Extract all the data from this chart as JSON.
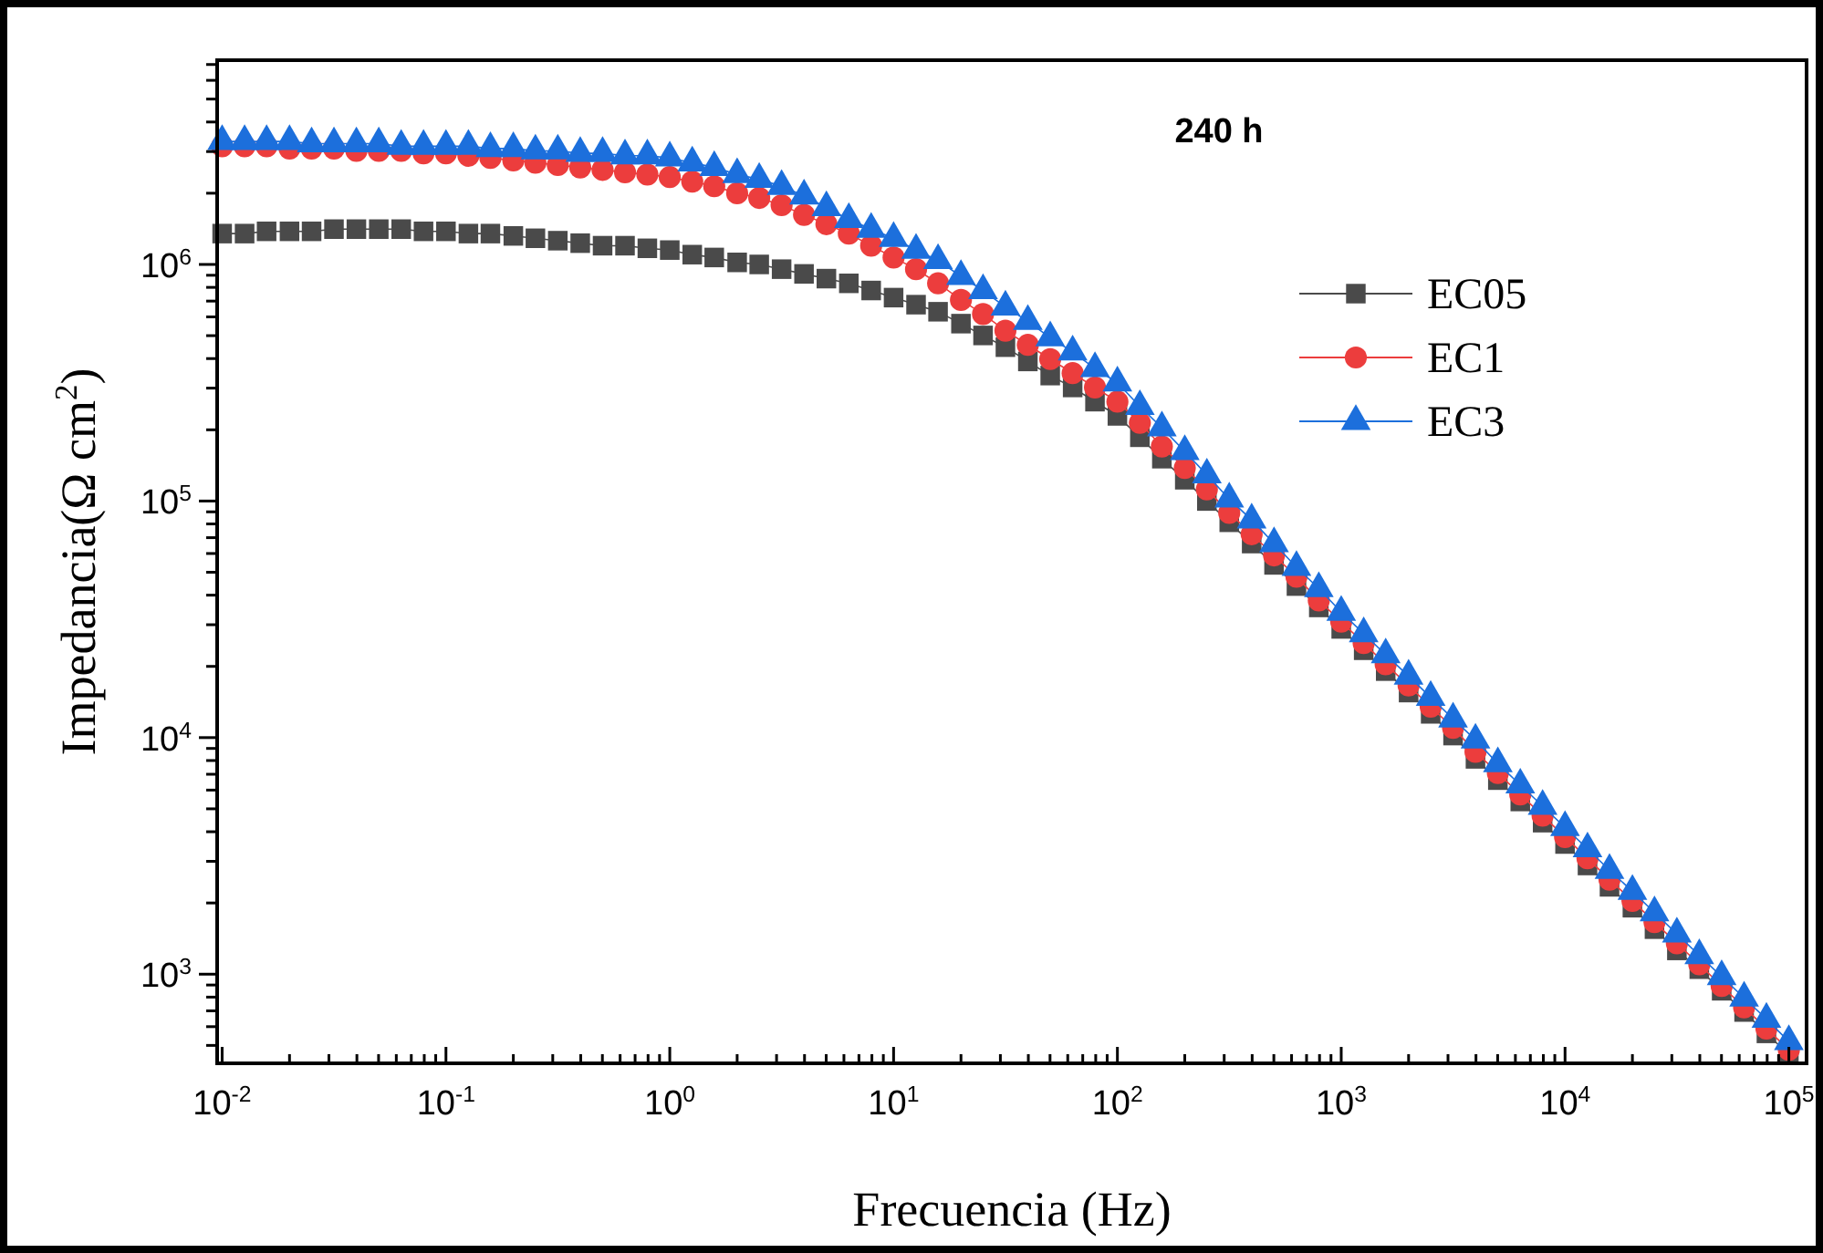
{
  "chart_data": {
    "type": "line",
    "title": "240 h",
    "xlabel": "Frecuencia (Hz)",
    "ylabel": "Impedancia(Ω cm$^{2}$)",
    "log": "xy",
    "line_style": "solid",
    "legend": "right",
    "grid": false,
    "xlim": [
      0.0095,
      120000
    ],
    "ylim": [
      420,
      7300000
    ],
    "xticks": [
      {
        "value": 0.01,
        "label": "10$^{-2}$"
      },
      {
        "value": 0.02,
        "label": null
      },
      {
        "value": 0.03,
        "label": null
      },
      {
        "value": 0.04,
        "label": null
      },
      {
        "value": 0.05,
        "label": null
      },
      {
        "value": 0.06,
        "label": null
      },
      {
        "value": 0.07,
        "label": null
      },
      {
        "value": 0.08,
        "label": null
      },
      {
        "value": 0.09,
        "label": null
      },
      {
        "value": 0.1,
        "label": "10$^{-1}$"
      },
      {
        "value": 0.2,
        "label": null
      },
      {
        "value": 0.3,
        "label": null
      },
      {
        "value": 0.4,
        "label": null
      },
      {
        "value": 0.5,
        "label": null
      },
      {
        "value": 0.6,
        "label": null
      },
      {
        "value": 0.7,
        "label": null
      },
      {
        "value": 0.8,
        "label": null
      },
      {
        "value": 0.9,
        "label": null
      },
      {
        "value": 1,
        "label": "10$^{0}$"
      },
      {
        "value": 2,
        "label": null
      },
      {
        "value": 3,
        "label": null
      },
      {
        "value": 4,
        "label": null
      },
      {
        "value": 5,
        "label": null
      },
      {
        "value": 6,
        "label": null
      },
      {
        "value": 7,
        "label": null
      },
      {
        "value": 8,
        "label": null
      },
      {
        "value": 9,
        "label": null
      },
      {
        "value": 10,
        "label": "10$^{1}$"
      },
      {
        "value": 20,
        "label": null
      },
      {
        "value": 30,
        "label": null
      },
      {
        "value": 40,
        "label": null
      },
      {
        "value": 50,
        "label": null
      },
      {
        "value": 60,
        "label": null
      },
      {
        "value": 70,
        "label": null
      },
      {
        "value": 80,
        "label": null
      },
      {
        "value": 90,
        "label": null
      },
      {
        "value": 100,
        "label": "10$^{2}$"
      },
      {
        "value": 200,
        "label": null
      },
      {
        "value": 300,
        "label": null
      },
      {
        "value": 400,
        "label": null
      },
      {
        "value": 500,
        "label": null
      },
      {
        "value": 600,
        "label": null
      },
      {
        "value": 700,
        "label": null
      },
      {
        "value": 800,
        "label": null
      },
      {
        "value": 900,
        "label": null
      },
      {
        "value": 1000,
        "label": "10$^{3}$"
      },
      {
        "value": 2000,
        "label": null
      },
      {
        "value": 3000,
        "label": null
      },
      {
        "value": 4000,
        "label": null
      },
      {
        "value": 5000,
        "label": null
      },
      {
        "value": 6000,
        "label": null
      },
      {
        "value": 7000,
        "label": null
      },
      {
        "value": 8000,
        "label": null
      },
      {
        "value": 9000,
        "label": null
      },
      {
        "value": 10000,
        "label": "10$^{4}$"
      },
      {
        "value": 20000,
        "label": null
      },
      {
        "value": 30000,
        "label": null
      },
      {
        "value": 40000,
        "label": null
      },
      {
        "value": 50000,
        "label": null
      },
      {
        "value": 60000,
        "label": null
      },
      {
        "value": 70000,
        "label": null
      },
      {
        "value": 80000,
        "label": null
      },
      {
        "value": 90000,
        "label": null
      },
      {
        "value": 100000,
        "label": "10$^{5}$"
      }
    ],
    "yticks": [
      {
        "value": 500,
        "label": null
      },
      {
        "value": 600,
        "label": null
      },
      {
        "value": 700,
        "label": null
      },
      {
        "value": 800,
        "label": null
      },
      {
        "value": 900,
        "label": null
      },
      {
        "value": 1000,
        "label": "10$^{3}$"
      },
      {
        "value": 2000,
        "label": null
      },
      {
        "value": 3000,
        "label": null
      },
      {
        "value": 4000,
        "label": null
      },
      {
        "value": 5000,
        "label": null
      },
      {
        "value": 6000,
        "label": null
      },
      {
        "value": 7000,
        "label": null
      },
      {
        "value": 8000,
        "label": null
      },
      {
        "value": 9000,
        "label": null
      },
      {
        "value": 10000,
        "label": "10$^{4}$"
      },
      {
        "value": 20000,
        "label": null
      },
      {
        "value": 30000,
        "label": null
      },
      {
        "value": 40000,
        "label": null
      },
      {
        "value": 50000,
        "label": null
      },
      {
        "value": 60000,
        "label": null
      },
      {
        "value": 70000,
        "label": null
      },
      {
        "value": 80000,
        "label": null
      },
      {
        "value": 90000,
        "label": null
      },
      {
        "value": 100000,
        "label": "10$^{5}$"
      },
      {
        "value": 200000,
        "label": null
      },
      {
        "value": 300000,
        "label": null
      },
      {
        "value": 400000,
        "label": null
      },
      {
        "value": 500000,
        "label": null
      },
      {
        "value": 600000,
        "label": null
      },
      {
        "value": 700000,
        "label": null
      },
      {
        "value": 800000,
        "label": null
      },
      {
        "value": 900000,
        "label": null
      },
      {
        "value": 1000000,
        "label": "10$^{6}$"
      },
      {
        "value": 2000000,
        "label": null
      },
      {
        "value": 3000000,
        "label": null
      },
      {
        "value": 4000000,
        "label": null
      },
      {
        "value": 5000000,
        "label": null
      },
      {
        "value": 6000000,
        "label": null
      },
      {
        "value": 7000000,
        "label": null
      }
    ],
    "x": [
      0.01,
      0.0126,
      0.0158,
      0.02,
      0.0251,
      0.0316,
      0.0398,
      0.0501,
      0.0631,
      0.0794,
      0.1,
      0.126,
      0.158,
      0.2,
      0.251,
      0.316,
      0.398,
      0.501,
      0.631,
      0.794,
      1,
      1.26,
      1.58,
      2,
      2.51,
      3.16,
      3.98,
      5.01,
      6.31,
      7.94,
      10,
      12.6,
      15.8,
      20,
      25.1,
      31.6,
      39.8,
      50.1,
      63.1,
      79.4,
      100,
      126,
      158,
      200,
      251,
      316,
      398,
      501,
      631,
      794,
      1000,
      1260,
      1580,
      2000,
      2510,
      3160,
      3980,
      5010,
      6310,
      7940,
      10000,
      12600,
      15800,
      20000,
      25100,
      31600,
      39800,
      50100,
      63100,
      79400,
      100000
    ],
    "series": [
      {
        "name": "EC05",
        "color": "#4a4a4a",
        "marker": "square",
        "values": [
          1350000,
          1350000,
          1380000,
          1380000,
          1380000,
          1410000,
          1410000,
          1410000,
          1410000,
          1380000,
          1380000,
          1350000,
          1350000,
          1320000,
          1290000,
          1260000,
          1230000,
          1200000,
          1200000,
          1170000,
          1150000,
          1100000,
          1070000,
          1020000,
          1000000,
          955000,
          912000,
          871000,
          832000,
          776000,
          724000,
          676000,
          631000,
          562000,
          501000,
          447000,
          389000,
          339000,
          302000,
          263000,
          229000,
          186000,
          151000,
          123000,
          100000,
          81300,
          66100,
          53700,
          43700,
          35500,
          28800,
          23400,
          19100,
          15500,
          12600,
          10200,
          8130,
          6610,
          5370,
          4370,
          3550,
          2880,
          2340,
          1910,
          1550,
          1260,
          1050,
          851,
          692,
          562,
          457
        ]
      },
      {
        "name": "EC1",
        "color": "#ec3d3d",
        "marker": "circle",
        "values": [
          3160000,
          3160000,
          3160000,
          3090000,
          3090000,
          3090000,
          3020000,
          3020000,
          3020000,
          2950000,
          2950000,
          2880000,
          2820000,
          2750000,
          2690000,
          2630000,
          2570000,
          2510000,
          2450000,
          2400000,
          2340000,
          2240000,
          2140000,
          2000000,
          1910000,
          1780000,
          1620000,
          1480000,
          1350000,
          1200000,
          1070000,
          955000,
          832000,
          708000,
          617000,
          525000,
          457000,
          398000,
          347000,
          302000,
          263000,
          214000,
          170000,
          138000,
          112000,
          89100,
          72400,
          58900,
          47900,
          38000,
          30900,
          25100,
          20400,
          16600,
          13500,
          11000,
          8710,
          7080,
          5750,
          4680,
          3800,
          3090,
          2510,
          2040,
          1660,
          1350,
          1100,
          891,
          724,
          589,
          479
        ]
      },
      {
        "name": "EC3",
        "color": "#1c6fdc",
        "marker": "triangle",
        "values": [
          3310000,
          3310000,
          3310000,
          3310000,
          3240000,
          3240000,
          3240000,
          3240000,
          3160000,
          3160000,
          3160000,
          3160000,
          3090000,
          3090000,
          3020000,
          3020000,
          2950000,
          2950000,
          2880000,
          2880000,
          2820000,
          2690000,
          2570000,
          2400000,
          2290000,
          2140000,
          1950000,
          1740000,
          1550000,
          1410000,
          1290000,
          1150000,
          1040000,
          891000,
          776000,
          661000,
          575000,
          490000,
          427000,
          363000,
          316000,
          251000,
          204000,
          162000,
          129000,
          102000,
          83200,
          66100,
          52500,
          42700,
          33900,
          27500,
          22400,
          18200,
          14800,
          12000,
          9770,
          7760,
          6310,
          5130,
          4170,
          3390,
          2750,
          2240,
          1820,
          1480,
          1200,
          977,
          794,
          646,
          519
        ]
      }
    ]
  }
}
